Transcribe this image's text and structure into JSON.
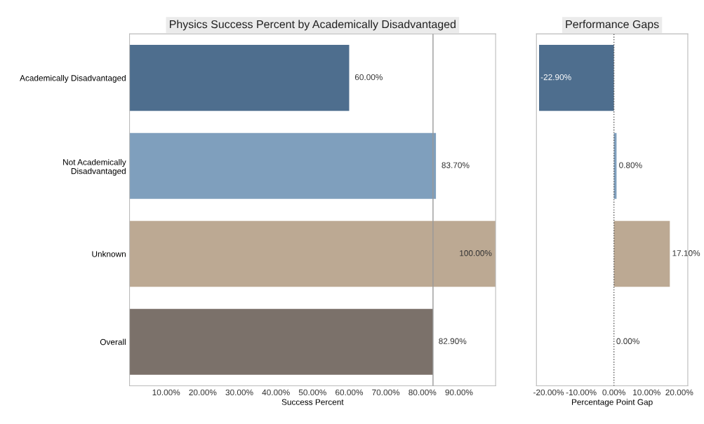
{
  "chart_data": [
    {
      "type": "bar",
      "orientation": "horizontal",
      "title": "Physics Success Percent by Academically Disadvantaged",
      "xlabel": "Success Percent",
      "categories": [
        "Academically Disadvantaged",
        "Not Academically\nDisadvantaged",
        "Unknown",
        "Overall"
      ],
      "values": [
        60.0,
        83.7,
        100.0,
        82.9
      ],
      "colors": [
        "#4e6e8e",
        "#7f9fbd",
        "#bca993",
        "#7b716a"
      ],
      "value_labels": [
        "60.00%",
        "83.70%",
        "100.00%",
        "82.90%"
      ],
      "xlim": [
        0,
        100
      ],
      "xticks": [
        {
          "value": 10,
          "label": "10.00%"
        },
        {
          "value": 20,
          "label": "20.00%"
        },
        {
          "value": 30,
          "label": "30.00%"
        },
        {
          "value": 40,
          "label": "40.00%"
        },
        {
          "value": 50,
          "label": "50.00%"
        },
        {
          "value": 60,
          "label": "60.00%"
        },
        {
          "value": 70,
          "label": "70.00%"
        },
        {
          "value": 80,
          "label": "80.00%"
        },
        {
          "value": 90,
          "label": "90.00%"
        }
      ],
      "ref_lines": [
        {
          "axis": "x",
          "value": 82.9,
          "color": "#999999",
          "line_style": "solid"
        }
      ],
      "grid": false,
      "legend": false
    },
    {
      "type": "bar",
      "orientation": "horizontal",
      "title": "Performance Gaps",
      "xlabel": "Percentage Point Gap",
      "categories": [
        null,
        null,
        null,
        null
      ],
      "values": [
        -22.9,
        0.8,
        17.1,
        0.0
      ],
      "colors": [
        "#4e6e8e",
        "#7f9fbd",
        "#bca993",
        "#7b716a"
      ],
      "value_labels": [
        "-22.90%",
        "0.80%",
        "17.10%",
        "0.00%"
      ],
      "xlim": [
        -23.7,
        22.6
      ],
      "xticks": [
        {
          "value": -20,
          "label": "-20.00%"
        },
        {
          "value": -10,
          "label": "-10.00%"
        },
        {
          "value": 0,
          "label": "0.00%"
        },
        {
          "value": 10,
          "label": "10.00%"
        },
        {
          "value": 20,
          "label": "20.00%"
        }
      ],
      "ref_lines": [
        {
          "axis": "x",
          "value": 0,
          "color": "#555555",
          "line_style": "dotted"
        }
      ],
      "tick_labels": "x",
      "grid": false,
      "legend": false
    }
  ]
}
